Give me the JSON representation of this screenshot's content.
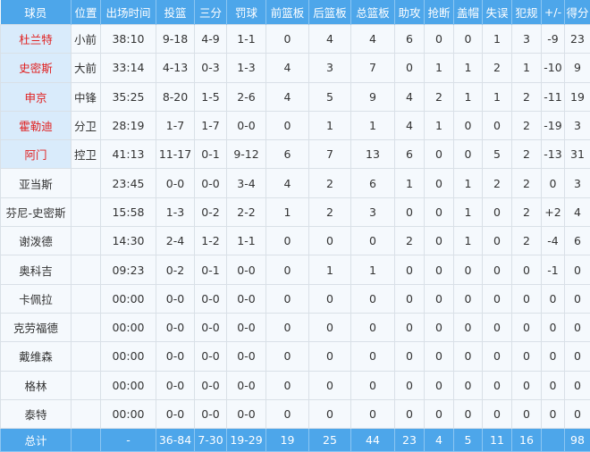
{
  "colors": {
    "header_bg": "#4da6ea",
    "starter_name": "#e02020",
    "starter_bg": "#d9ebfb"
  },
  "columns": [
    "球员",
    "位置",
    "出场时间",
    "投篮",
    "三分",
    "罚球",
    "前篮板",
    "后篮板",
    "总篮板",
    "助攻",
    "抢断",
    "盖帽",
    "失误",
    "犯规",
    "+/-",
    "得分"
  ],
  "players": [
    {
      "starter": true,
      "cells": [
        "杜兰特",
        "小前",
        "38:10",
        "9-18",
        "4-9",
        "1-1",
        "0",
        "4",
        "4",
        "6",
        "0",
        "0",
        "1",
        "3",
        "-9",
        "23"
      ]
    },
    {
      "starter": true,
      "cells": [
        "史密斯",
        "大前",
        "33:14",
        "4-13",
        "0-3",
        "1-3",
        "4",
        "3",
        "7",
        "0",
        "1",
        "1",
        "2",
        "1",
        "-10",
        "9"
      ]
    },
    {
      "starter": true,
      "cells": [
        "申京",
        "中锋",
        "35:25",
        "8-20",
        "1-5",
        "2-6",
        "4",
        "5",
        "9",
        "4",
        "2",
        "1",
        "1",
        "2",
        "-11",
        "19"
      ]
    },
    {
      "starter": true,
      "cells": [
        "霍勒迪",
        "分卫",
        "28:19",
        "1-7",
        "1-7",
        "0-0",
        "0",
        "1",
        "1",
        "4",
        "1",
        "0",
        "0",
        "2",
        "-19",
        "3"
      ]
    },
    {
      "starter": true,
      "cells": [
        "阿门",
        "控卫",
        "41:13",
        "11-17",
        "0-1",
        "9-12",
        "6",
        "7",
        "13",
        "6",
        "0",
        "0",
        "5",
        "2",
        "-13",
        "31"
      ]
    },
    {
      "starter": false,
      "cells": [
        "亚当斯",
        "",
        "23:45",
        "0-0",
        "0-0",
        "3-4",
        "4",
        "2",
        "6",
        "1",
        "0",
        "1",
        "2",
        "2",
        "0",
        "3"
      ]
    },
    {
      "starter": false,
      "cells": [
        "芬尼-史密斯",
        "",
        "15:58",
        "1-3",
        "0-2",
        "2-2",
        "1",
        "2",
        "3",
        "0",
        "0",
        "1",
        "0",
        "2",
        "+2",
        "4"
      ]
    },
    {
      "starter": false,
      "cells": [
        "谢泼德",
        "",
        "14:30",
        "2-4",
        "1-2",
        "1-1",
        "0",
        "0",
        "0",
        "2",
        "0",
        "1",
        "0",
        "2",
        "-4",
        "6"
      ]
    },
    {
      "starter": false,
      "cells": [
        "奥科吉",
        "",
        "09:23",
        "0-2",
        "0-1",
        "0-0",
        "0",
        "1",
        "1",
        "0",
        "0",
        "0",
        "0",
        "0",
        "-1",
        "0"
      ]
    },
    {
      "starter": false,
      "cells": [
        "卡佩拉",
        "",
        "00:00",
        "0-0",
        "0-0",
        "0-0",
        "0",
        "0",
        "0",
        "0",
        "0",
        "0",
        "0",
        "0",
        "0",
        "0"
      ]
    },
    {
      "starter": false,
      "cells": [
        "克劳福德",
        "",
        "00:00",
        "0-0",
        "0-0",
        "0-0",
        "0",
        "0",
        "0",
        "0",
        "0",
        "0",
        "0",
        "0",
        "0",
        "0"
      ]
    },
    {
      "starter": false,
      "cells": [
        "戴维森",
        "",
        "00:00",
        "0-0",
        "0-0",
        "0-0",
        "0",
        "0",
        "0",
        "0",
        "0",
        "0",
        "0",
        "0",
        "0",
        "0"
      ]
    },
    {
      "starter": false,
      "cells": [
        "格林",
        "",
        "00:00",
        "0-0",
        "0-0",
        "0-0",
        "0",
        "0",
        "0",
        "0",
        "0",
        "0",
        "0",
        "0",
        "0",
        "0"
      ]
    },
    {
      "starter": false,
      "cells": [
        "泰特",
        "",
        "00:00",
        "0-0",
        "0-0",
        "0-0",
        "0",
        "0",
        "0",
        "0",
        "0",
        "0",
        "0",
        "0",
        "0",
        "0"
      ]
    }
  ],
  "totals": [
    "总计",
    "",
    "-",
    "36-84",
    "7-30",
    "19-29",
    "19",
    "25",
    "44",
    "23",
    "4",
    "5",
    "11",
    "16",
    "",
    "98"
  ]
}
